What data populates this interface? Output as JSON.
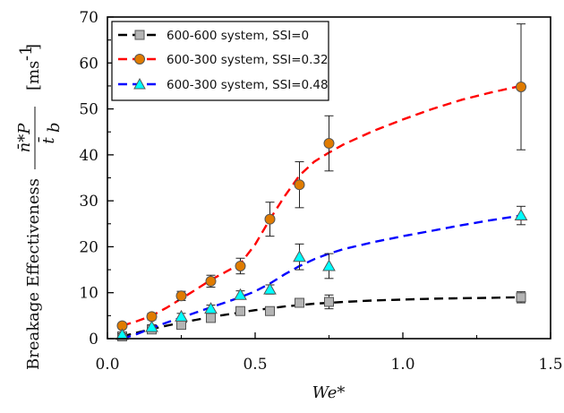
{
  "chart_data": {
    "type": "scatter",
    "xlabel": "We*",
    "ylabel": {
      "main": "Breakage Effectiveness",
      "numerator": "n̄*P",
      "denominator": "t̄",
      "denominator_sub": "b",
      "unit": "[ms",
      "unit_sup": "-1",
      "unit_end": "]"
    },
    "xlim": [
      0.0,
      1.5
    ],
    "ylim": [
      0,
      70
    ],
    "xticks": [
      0.0,
      0.5,
      1.0,
      1.5
    ],
    "xtick_labels": [
      "0.0",
      "0.5",
      "1.0",
      "1.5"
    ],
    "yticks": [
      0,
      10,
      20,
      30,
      40,
      50,
      60,
      70
    ],
    "ytick_labels": [
      "0",
      "10",
      "20",
      "30",
      "40",
      "50",
      "60",
      "70"
    ],
    "grid": false,
    "legend_position": "top-left",
    "series": [
      {
        "name": "600-600 system, SSI=0",
        "color": "#000000",
        "marker_color": "#b4b4b4",
        "marker": "square",
        "x": [
          0.05,
          0.15,
          0.25,
          0.35,
          0.45,
          0.55,
          0.65,
          0.75,
          1.4
        ],
        "y": [
          0.5,
          2.0,
          3.0,
          4.5,
          6.0,
          6.0,
          7.8,
          8.0,
          9.0
        ],
        "err": [
          0.3,
          0.6,
          0.8,
          0.8,
          0.6,
          0.6,
          0.8,
          1.5,
          1.2
        ],
        "fit_x": [
          0.05,
          0.1,
          0.15,
          0.2,
          0.25,
          0.3,
          0.35,
          0.4,
          0.45,
          0.5,
          0.55,
          0.6,
          0.65,
          0.7,
          0.75,
          0.8,
          0.9,
          1.0,
          1.1,
          1.2,
          1.3,
          1.4
        ],
        "fit_y": [
          0.5,
          1.3,
          2.1,
          2.8,
          3.5,
          4.1,
          4.7,
          5.2,
          5.7,
          6.2,
          6.6,
          7.0,
          7.3,
          7.6,
          7.8,
          8.0,
          8.3,
          8.5,
          8.7,
          8.8,
          8.9,
          9.0
        ]
      },
      {
        "name": "600-300 system, SSI=0.32",
        "color": "#ff0000",
        "marker_color": "#e07b00",
        "marker": "circle",
        "x": [
          0.05,
          0.15,
          0.25,
          0.35,
          0.45,
          0.55,
          0.65,
          0.75,
          1.4
        ],
        "y": [
          2.8,
          4.8,
          9.3,
          12.5,
          15.8,
          26.0,
          33.5,
          42.5,
          54.8
        ],
        "err": [
          0.5,
          0.7,
          1.0,
          1.3,
          1.7,
          3.7,
          5.0,
          6.0,
          13.7
        ],
        "fit_x": [
          0.05,
          0.1,
          0.15,
          0.2,
          0.25,
          0.3,
          0.35,
          0.4,
          0.45,
          0.5,
          0.55,
          0.6,
          0.65,
          0.7,
          0.75,
          0.8,
          0.9,
          1.0,
          1.1,
          1.2,
          1.3,
          1.4
        ],
        "fit_y": [
          2.8,
          3.8,
          5.0,
          6.7,
          8.7,
          10.7,
          12.8,
          14.5,
          16.3,
          20.5,
          26.0,
          31.0,
          35.5,
          38.5,
          40.5,
          42.3,
          45.2,
          47.7,
          50.0,
          52.0,
          53.6,
          55.0
        ]
      },
      {
        "name": "600-300 system, SSI=0.48",
        "color": "#0000ff",
        "marker_color": "#00ffff",
        "marker": "triangle",
        "x": [
          0.05,
          0.15,
          0.25,
          0.35,
          0.45,
          0.55,
          0.65,
          0.75,
          1.4
        ],
        "y": [
          0.8,
          2.5,
          4.8,
          6.5,
          9.5,
          10.7,
          17.8,
          15.8,
          26.8
        ],
        "err": [
          0.3,
          0.5,
          0.7,
          0.8,
          0.9,
          1.0,
          2.8,
          2.7,
          2.0
        ],
        "fit_x": [
          0.05,
          0.1,
          0.15,
          0.2,
          0.25,
          0.3,
          0.35,
          0.4,
          0.45,
          0.5,
          0.55,
          0.6,
          0.65,
          0.7,
          0.75,
          0.8,
          0.9,
          1.0,
          1.1,
          1.2,
          1.3,
          1.4
        ],
        "fit_y": [
          0.0,
          1.0,
          2.3,
          3.5,
          4.6,
          5.7,
          6.8,
          7.9,
          9.0,
          10.3,
          12.0,
          14.0,
          15.8,
          17.3,
          18.5,
          19.5,
          21.0,
          22.3,
          23.5,
          24.7,
          25.8,
          26.8
        ]
      }
    ]
  }
}
